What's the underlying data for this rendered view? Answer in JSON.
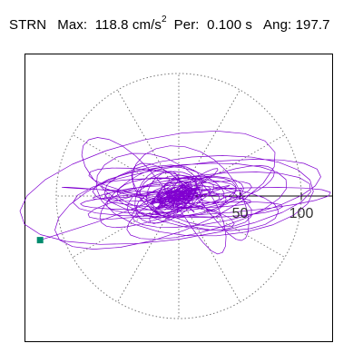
{
  "header": {
    "component": "STRN",
    "max_label": "Max:",
    "max_value": "118.8",
    "max_unit": "cm/s",
    "max_unit_exp": "2",
    "per_label": "Per:",
    "per_value": "0.100 s",
    "ang_label": "Ang:",
    "ang_value": "197.7"
  },
  "chart_data": {
    "type": "scatter",
    "title": "",
    "xlabel": "",
    "ylabel": "",
    "rings": [
      50,
      100
    ],
    "ring_labels": [
      "50",
      "100"
    ],
    "outer_ring": 100,
    "spokes_deg": [
      0,
      30,
      60,
      90,
      120,
      150,
      180,
      210,
      240,
      270,
      300,
      330
    ],
    "xlim": [
      -118.8,
      118.8
    ],
    "ylim": [
      -118.8,
      118.8
    ],
    "max_magnitude": 118.8,
    "max_angle_deg": 197.7,
    "max_point": [
      -113.2,
      -36.0
    ],
    "grid": true,
    "colors": {
      "trace": "#8000d0",
      "marker": "#008c6e",
      "grid": "#777777",
      "axis": "#000000"
    }
  }
}
